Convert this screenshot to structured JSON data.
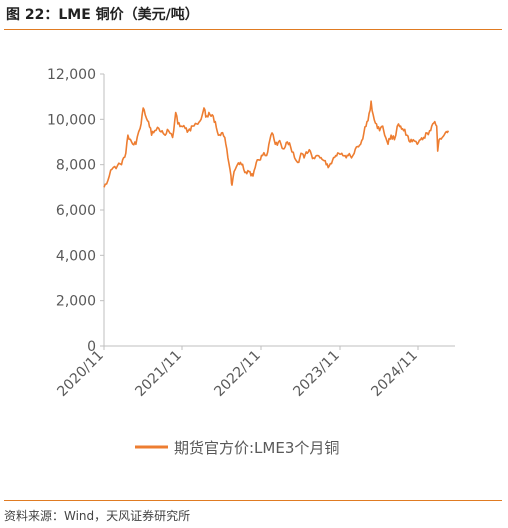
{
  "header": {
    "title": "图 22：LME 铜价（美元/吨）"
  },
  "footer": {
    "source": "资料来源：Wind，天风证券研究所"
  },
  "colors": {
    "series": "#ED7D31",
    "rule": "#E07B22",
    "axis": "#BFBFBF"
  },
  "chart_data": {
    "type": "line",
    "title": "",
    "xlabel": "",
    "ylabel": "",
    "ylim": [
      0,
      12000
    ],
    "yticks": [
      "0",
      "2,000",
      "4,000",
      "6,000",
      "8,000",
      "10,000",
      "12,000"
    ],
    "xticks": [
      "2020/11",
      "2021/11",
      "2022/11",
      "2023/11",
      "2024/11"
    ],
    "grid": false,
    "legend": "bottom",
    "series": [
      {
        "name": "期货官方价:LME3个月铜",
        "points": [
          [
            "2020-11-01",
            7000
          ],
          [
            "2020-11-20",
            7300
          ],
          [
            "2020-12-10",
            7800
          ],
          [
            "2021-01-05",
            7950
          ],
          [
            "2021-01-25",
            8000
          ],
          [
            "2021-02-15",
            8500
          ],
          [
            "2021-02-25",
            9300
          ],
          [
            "2021-03-15",
            9000
          ],
          [
            "2021-04-05",
            8900
          ],
          [
            "2021-04-25",
            9600
          ],
          [
            "2021-05-10",
            10500
          ],
          [
            "2021-05-20",
            10200
          ],
          [
            "2021-06-05",
            9900
          ],
          [
            "2021-06-20",
            9300
          ],
          [
            "2021-07-05",
            9500
          ],
          [
            "2021-07-25",
            9600
          ],
          [
            "2021-08-10",
            9500
          ],
          [
            "2021-08-25",
            9300
          ],
          [
            "2021-09-10",
            9500
          ],
          [
            "2021-09-30",
            9200
          ],
          [
            "2021-10-15",
            10300
          ],
          [
            "2021-10-25",
            9800
          ],
          [
            "2021-11-10",
            9700
          ],
          [
            "2021-11-30",
            9600
          ],
          [
            "2021-12-15",
            9500
          ],
          [
            "2022-01-05",
            9700
          ],
          [
            "2022-01-25",
            9800
          ],
          [
            "2022-02-15",
            10000
          ],
          [
            "2022-03-01",
            10500
          ],
          [
            "2022-03-10",
            10100
          ],
          [
            "2022-03-25",
            10300
          ],
          [
            "2022-04-10",
            10200
          ],
          [
            "2022-04-25",
            9900
          ],
          [
            "2022-05-10",
            9300
          ],
          [
            "2022-05-25",
            9400
          ],
          [
            "2022-06-10",
            9200
          ],
          [
            "2022-06-25",
            8300
          ],
          [
            "2022-07-10",
            7500
          ],
          [
            "2022-07-15",
            7100
          ],
          [
            "2022-07-25",
            7700
          ],
          [
            "2022-08-10",
            8000
          ],
          [
            "2022-08-25",
            8100
          ],
          [
            "2022-09-10",
            7800
          ],
          [
            "2022-09-25",
            7600
          ],
          [
            "2022-10-10",
            7700
          ],
          [
            "2022-10-25",
            7500
          ],
          [
            "2022-11-10",
            8100
          ],
          [
            "2022-11-25",
            8200
          ],
          [
            "2022-12-10",
            8400
          ],
          [
            "2022-12-30",
            8400
          ],
          [
            "2023-01-15",
            9100
          ],
          [
            "2023-01-25",
            9400
          ],
          [
            "2023-02-10",
            8900
          ],
          [
            "2023-02-25",
            9000
          ],
          [
            "2023-03-10",
            8900
          ],
          [
            "2023-03-25",
            8700
          ],
          [
            "2023-04-10",
            9000
          ],
          [
            "2023-04-25",
            8800
          ],
          [
            "2023-05-15",
            8300
          ],
          [
            "2023-05-30",
            8100
          ],
          [
            "2023-06-15",
            8500
          ],
          [
            "2023-06-30",
            8300
          ],
          [
            "2023-07-15",
            8500
          ],
          [
            "2023-07-30",
            8600
          ],
          [
            "2023-08-15",
            8300
          ],
          [
            "2023-08-30",
            8400
          ],
          [
            "2023-09-15",
            8300
          ],
          [
            "2023-09-30",
            8200
          ],
          [
            "2023-10-15",
            8000
          ],
          [
            "2023-10-30",
            7950
          ],
          [
            "2023-11-15",
            8200
          ],
          [
            "2023-11-30",
            8400
          ],
          [
            "2023-12-15",
            8500
          ],
          [
            "2023-12-30",
            8500
          ],
          [
            "2024-01-15",
            8400
          ],
          [
            "2024-01-30",
            8400
          ],
          [
            "2024-02-15",
            8300
          ],
          [
            "2024-02-28",
            8500
          ],
          [
            "2024-03-15",
            8800
          ],
          [
            "2024-03-30",
            8900
          ],
          [
            "2024-04-15",
            9400
          ],
          [
            "2024-04-30",
            9900
          ],
          [
            "2024-05-15",
            10400
          ],
          [
            "2024-05-20",
            10800
          ],
          [
            "2024-05-30",
            10200
          ],
          [
            "2024-06-15",
            9800
          ],
          [
            "2024-06-30",
            9500
          ],
          [
            "2024-07-15",
            9700
          ],
          [
            "2024-07-30",
            9200
          ],
          [
            "2024-08-10",
            8900
          ],
          [
            "2024-08-25",
            9300
          ],
          [
            "2024-09-10",
            9100
          ],
          [
            "2024-09-30",
            9800
          ],
          [
            "2024-10-10",
            9700
          ],
          [
            "2024-10-25",
            9500
          ],
          [
            "2024-11-10",
            9300
          ],
          [
            "2024-11-25",
            9000
          ],
          [
            "2024-12-10",
            9100
          ],
          [
            "2024-12-30",
            8900
          ],
          [
            "2025-01-15",
            9100
          ],
          [
            "2025-01-30",
            9200
          ],
          [
            "2025-02-15",
            9400
          ],
          [
            "2025-02-28",
            9500
          ],
          [
            "2025-03-15",
            9800
          ],
          [
            "2025-03-25",
            9900
          ],
          [
            "2025-04-03",
            9700
          ],
          [
            "2025-04-08",
            8600
          ],
          [
            "2025-04-15",
            9100
          ],
          [
            "2025-04-30",
            9200
          ],
          [
            "2025-05-15",
            9400
          ],
          [
            "2025-05-30",
            9500
          ]
        ]
      }
    ]
  }
}
